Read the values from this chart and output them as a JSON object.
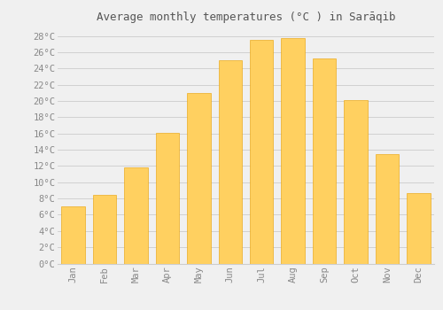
{
  "title": "Average monthly temperatures (°C ) in Sarāqib",
  "months": [
    "Jan",
    "Feb",
    "Mar",
    "Apr",
    "May",
    "Jun",
    "Jul",
    "Aug",
    "Sep",
    "Oct",
    "Nov",
    "Dec"
  ],
  "values": [
    7,
    8.5,
    11.8,
    16.1,
    21.0,
    25.0,
    27.5,
    27.8,
    25.2,
    20.1,
    13.5,
    8.7
  ],
  "bar_color_top": "#FFA500",
  "bar_color_bottom": "#FFD060",
  "background_color": "#F0F0F0",
  "grid_color": "#CCCCCC",
  "text_color": "#888888",
  "title_color": "#555555",
  "ylim": [
    0,
    29
  ],
  "yticks": [
    0,
    2,
    4,
    6,
    8,
    10,
    12,
    14,
    16,
    18,
    20,
    22,
    24,
    26,
    28
  ],
  "title_fontsize": 9,
  "tick_fontsize": 7.5,
  "bar_width": 0.75
}
